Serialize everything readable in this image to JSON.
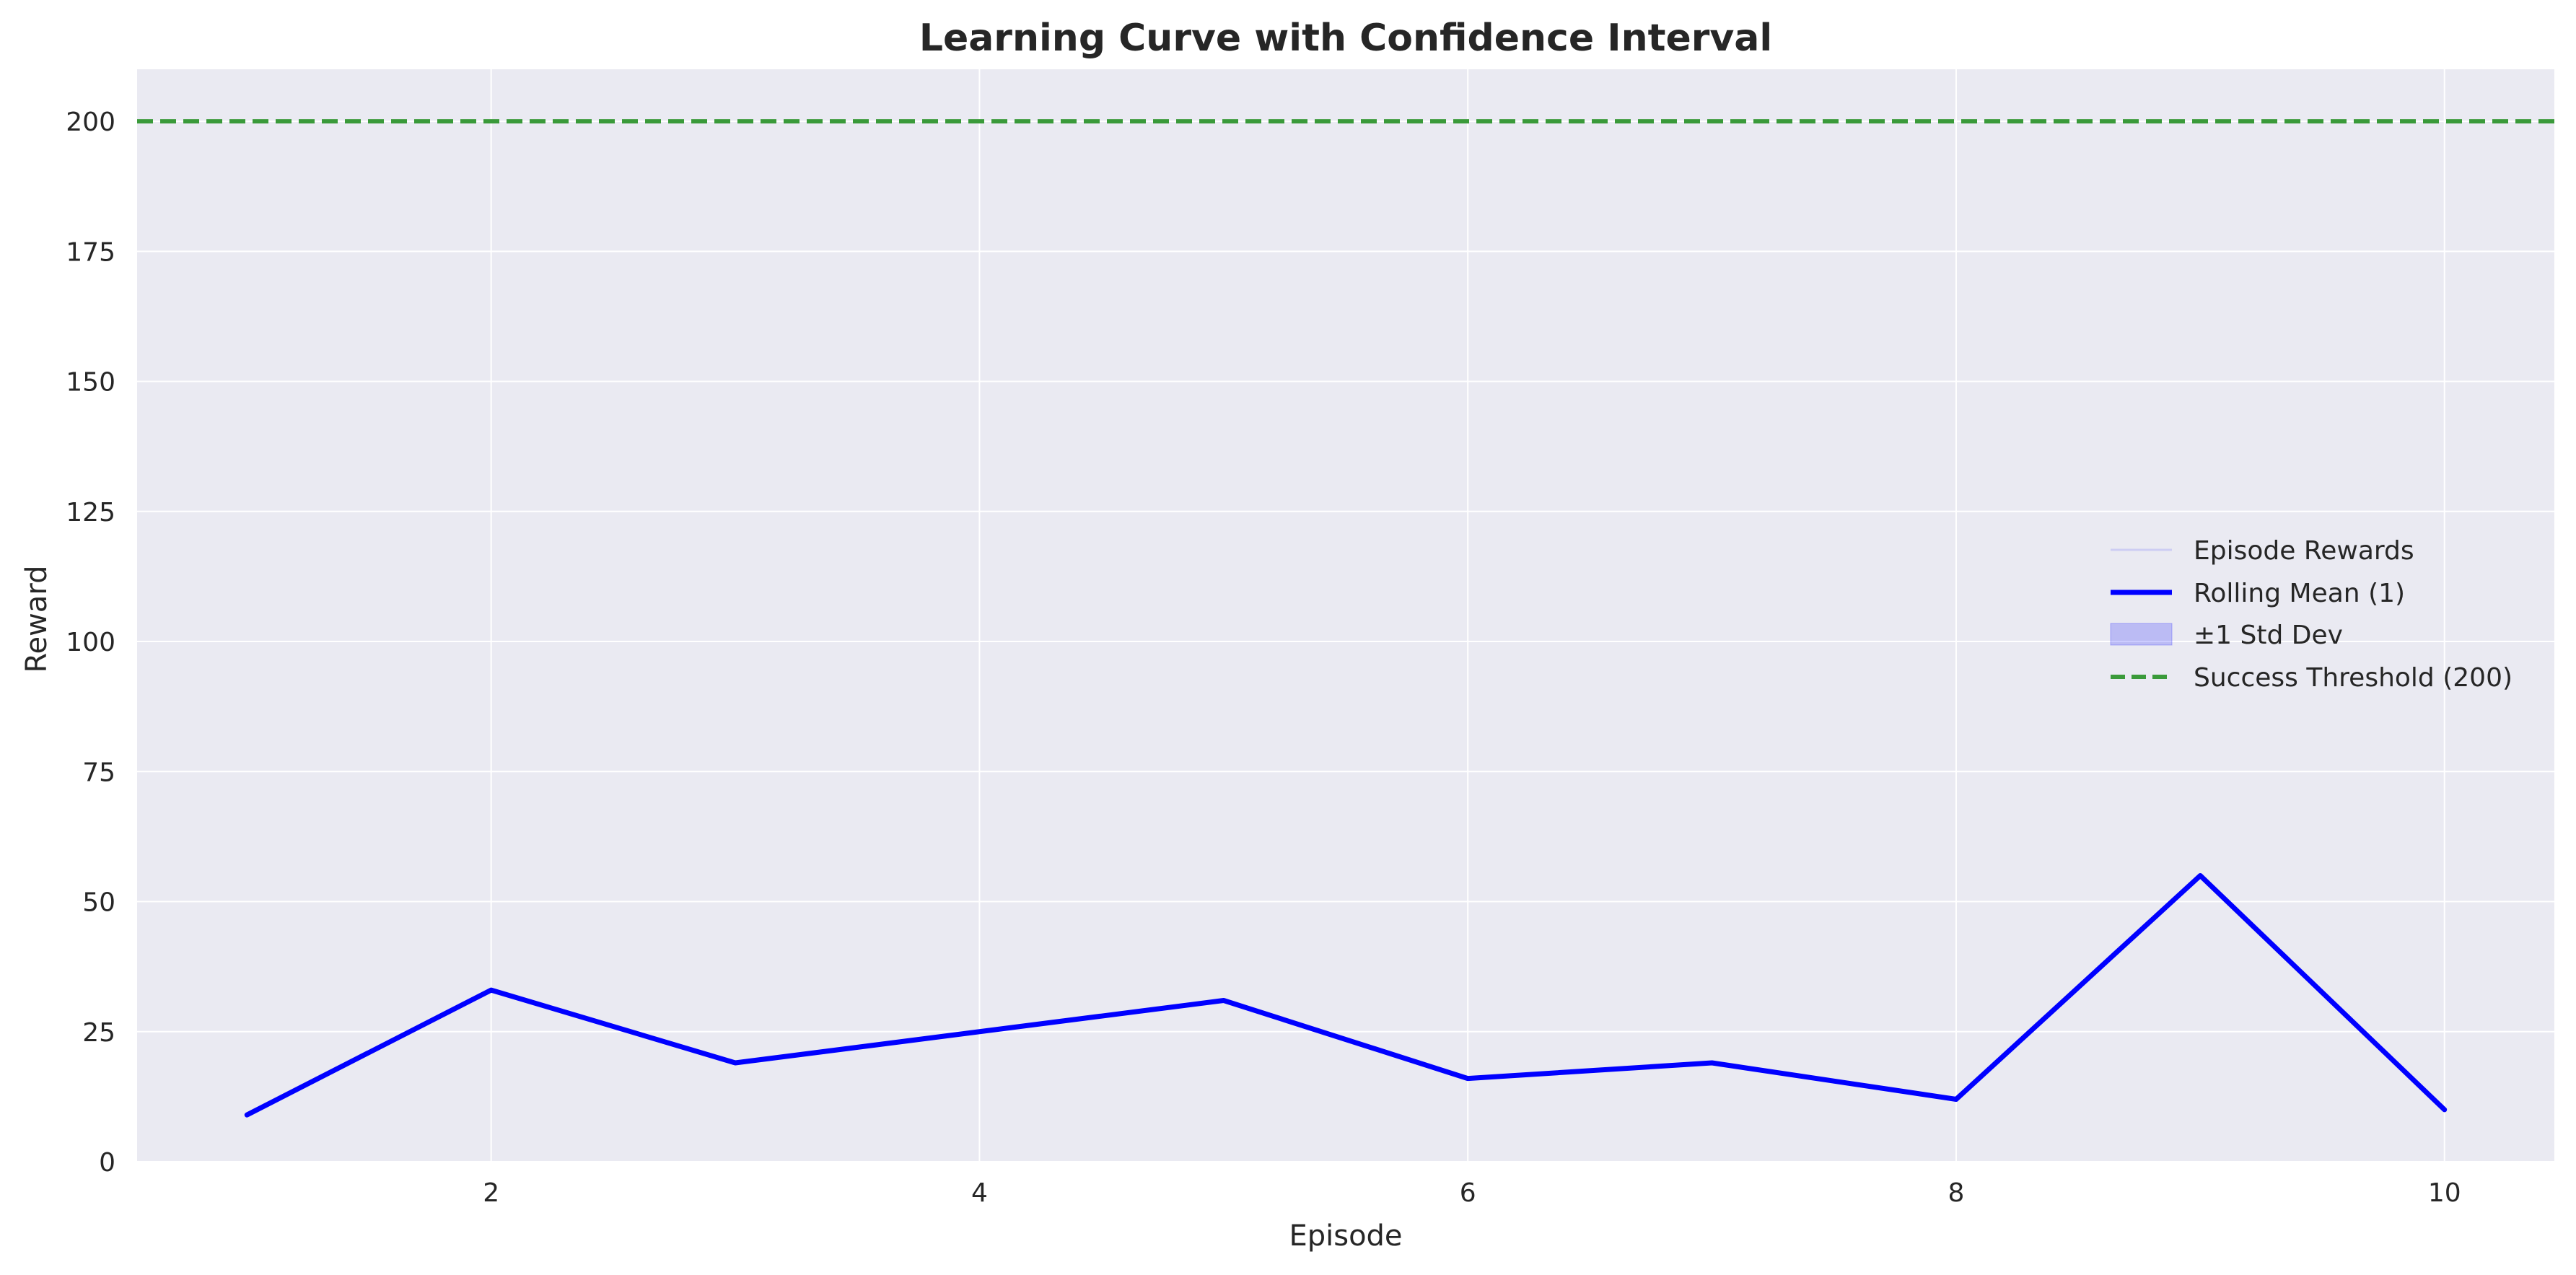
{
  "chart_data": {
    "type": "line",
    "title": "Learning Curve with Confidence Interval",
    "xlabel": "Episode",
    "ylabel": "Reward",
    "xlim": [
      0.55,
      10.45
    ],
    "ylim": [
      0,
      210
    ],
    "x_ticks": [
      2,
      4,
      6,
      8,
      10
    ],
    "y_ticks": [
      0,
      25,
      50,
      75,
      100,
      125,
      150,
      175,
      200
    ],
    "grid": true,
    "legend_position": "center-right",
    "x": [
      1,
      2,
      3,
      4,
      5,
      6,
      7,
      8,
      9,
      10
    ],
    "series": [
      {
        "name": "Episode Rewards",
        "values": [
          9,
          33,
          19,
          25,
          31,
          16,
          19,
          12,
          55,
          10
        ],
        "color": "#0000ff",
        "style": "faint"
      },
      {
        "name": "Rolling Mean (1)",
        "values": [
          9,
          33,
          19,
          25,
          31,
          16,
          19,
          12,
          55,
          10
        ],
        "color": "#0000ff",
        "style": "solid"
      }
    ],
    "band": {
      "name": "±1 Std Dev",
      "lower": [
        9,
        33,
        19,
        25,
        31,
        16,
        19,
        12,
        55,
        10
      ],
      "upper": [
        9,
        33,
        19,
        25,
        31,
        16,
        19,
        12,
        55,
        10
      ],
      "color": "#0000ff"
    },
    "threshold": {
      "name": "Success Threshold (200)",
      "value": 200,
      "color": "#3a9a3a",
      "style": "dashed"
    },
    "colors": {
      "plot_background": "#eaeaf2",
      "grid": "#ffffff"
    }
  }
}
